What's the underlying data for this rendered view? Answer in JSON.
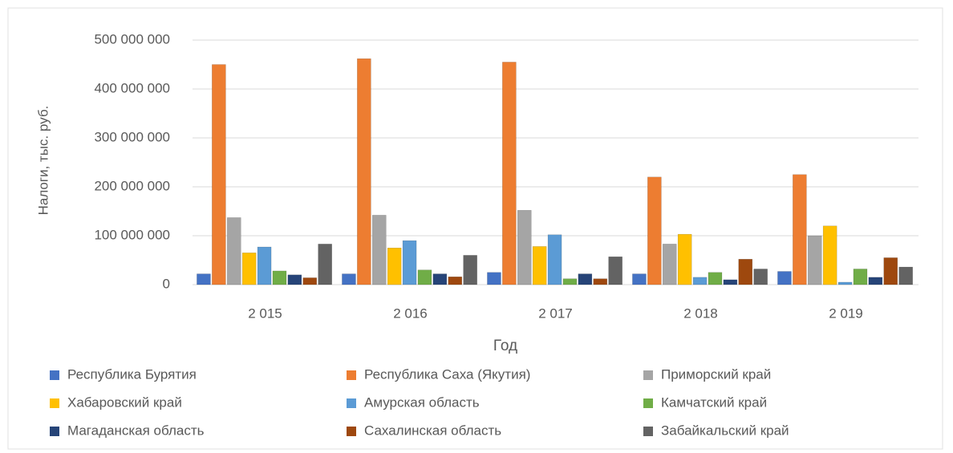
{
  "chart_data": {
    "type": "bar",
    "y_label": "Налоги, тыс. руб.",
    "x_label": "Год",
    "categories": [
      "2 015",
      "2 016",
      "2 017",
      "2 018",
      "2 019"
    ],
    "series": [
      {
        "name": "Республика Бурятия",
        "color": "#4472c4",
        "values": [
          22000000,
          22000000,
          25000000,
          22000000,
          27000000
        ]
      },
      {
        "name": "Республика Саха (Якутия)",
        "color": "#ed7d31",
        "values": [
          450000000,
          462000000,
          455000000,
          220000000,
          225000000
        ]
      },
      {
        "name": "Приморский край",
        "color": "#a5a5a5",
        "values": [
          137000000,
          142000000,
          152000000,
          83000000,
          100000000
        ]
      },
      {
        "name": "Хабаровский край",
        "color": "#ffc000",
        "values": [
          65000000,
          75000000,
          78000000,
          103000000,
          120000000
        ]
      },
      {
        "name": "Амурская область",
        "color": "#5b9bd5",
        "values": [
          77000000,
          90000000,
          102000000,
          15000000,
          5000000
        ]
      },
      {
        "name": "Камчатский край",
        "color": "#70ad47",
        "values": [
          28000000,
          30000000,
          12000000,
          25000000,
          32000000
        ]
      },
      {
        "name": "Магаданская область",
        "color": "#264478",
        "values": [
          20000000,
          22000000,
          22000000,
          10000000,
          15000000
        ]
      },
      {
        "name": "Сахалинская область",
        "color": "#9e480e",
        "values": [
          14000000,
          16000000,
          12000000,
          52000000,
          55000000
        ]
      },
      {
        "name": "Забайкальский край",
        "color": "#636363",
        "values": [
          83000000,
          60000000,
          57000000,
          32000000,
          36000000
        ]
      }
    ],
    "ylim": [
      0,
      500000000
    ],
    "yticks": [
      {
        "value": 0,
        "label": "0"
      },
      {
        "value": 100000000,
        "label": "100 000 000"
      },
      {
        "value": 200000000,
        "label": "200 000 000"
      },
      {
        "value": 300000000,
        "label": "300 000 000"
      },
      {
        "value": 400000000,
        "label": "400 000 000"
      },
      {
        "value": 500000000,
        "label": "500 000 000"
      }
    ],
    "grid": true
  }
}
